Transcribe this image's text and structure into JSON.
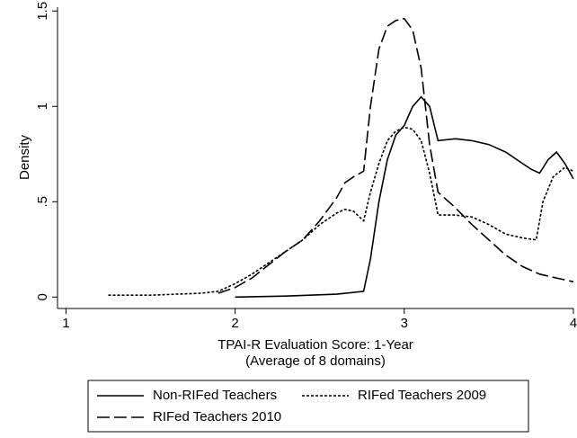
{
  "chart_data": {
    "type": "line",
    "ylabel": "Density",
    "xlabel": [
      "TPAI-R Evaluation Score: 1-Year",
      "(Average of 8 domains)"
    ],
    "xlim": [
      0.95,
      4
    ],
    "xticks": [
      1,
      2,
      3,
      4
    ],
    "ylim": [
      -0.06,
      1.52
    ],
    "yticks": [
      0,
      {
        "value": 0.5,
        "label": ".5"
      },
      1,
      1.5
    ],
    "legend": "bottom",
    "series": [
      {
        "name": "Non-RIFed Teachers",
        "color": "#000000",
        "linestyle": "solid",
        "x": [
          2.0,
          2.3,
          2.6,
          2.76,
          2.8,
          2.85,
          2.9,
          2.95,
          3.0,
          3.05,
          3.1,
          3.15,
          3.2,
          3.3,
          3.4,
          3.5,
          3.6,
          3.7,
          3.75,
          3.8,
          3.85,
          3.9,
          3.95,
          4.0
        ],
        "values": [
          0.0,
          0.005,
          0.015,
          0.03,
          0.2,
          0.5,
          0.72,
          0.85,
          0.9,
          1.0,
          1.05,
          1.0,
          0.82,
          0.83,
          0.82,
          0.8,
          0.76,
          0.7,
          0.67,
          0.65,
          0.72,
          0.76,
          0.7,
          0.62
        ]
      },
      {
        "name": "RIFed Teachers 2009",
        "color": "#000000",
        "linestyle": "dotted",
        "x": [
          1.25,
          1.5,
          1.8,
          1.9,
          2.0,
          2.1,
          2.2,
          2.3,
          2.4,
          2.5,
          2.6,
          2.65,
          2.7,
          2.76,
          2.8,
          2.85,
          2.9,
          2.95,
          3.0,
          3.05,
          3.1,
          3.15,
          3.2,
          3.3,
          3.4,
          3.5,
          3.6,
          3.7,
          3.78,
          3.82,
          3.88,
          3.95,
          4.0
        ],
        "values": [
          0.01,
          0.01,
          0.02,
          0.03,
          0.07,
          0.12,
          0.18,
          0.24,
          0.3,
          0.38,
          0.44,
          0.46,
          0.45,
          0.4,
          0.55,
          0.7,
          0.82,
          0.87,
          0.89,
          0.88,
          0.82,
          0.65,
          0.43,
          0.43,
          0.42,
          0.38,
          0.33,
          0.31,
          0.3,
          0.5,
          0.63,
          0.68,
          0.66
        ]
      },
      {
        "name": "RIFed Teachers 2010",
        "color": "#000000",
        "linestyle": "dashed",
        "x": [
          1.9,
          2.0,
          2.1,
          2.2,
          2.3,
          2.4,
          2.5,
          2.6,
          2.65,
          2.7,
          2.76,
          2.8,
          2.85,
          2.9,
          2.95,
          3.0,
          3.05,
          3.1,
          3.15,
          3.2,
          3.3,
          3.4,
          3.5,
          3.6,
          3.7,
          3.8,
          3.9,
          4.0
        ],
        "values": [
          0.02,
          0.05,
          0.1,
          0.17,
          0.24,
          0.3,
          0.4,
          0.52,
          0.6,
          0.63,
          0.66,
          1.0,
          1.3,
          1.42,
          1.45,
          1.46,
          1.4,
          1.2,
          0.8,
          0.55,
          0.47,
          0.38,
          0.3,
          0.22,
          0.16,
          0.12,
          0.1,
          0.08
        ]
      }
    ]
  }
}
